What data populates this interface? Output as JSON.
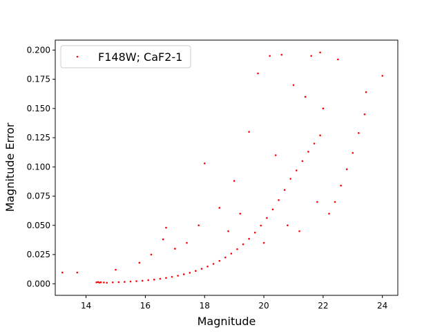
{
  "chart_data": {
    "type": "scatter",
    "xlabel": "Magnitude",
    "ylabel": "Magnitude Error",
    "xlim": [
      12.96,
      24.52
    ],
    "ylim": [
      -0.0099,
      0.2085
    ],
    "xticks": [
      14,
      16,
      18,
      20,
      22,
      24
    ],
    "xtick_labels": [
      "14",
      "16",
      "18",
      "20",
      "22",
      "24"
    ],
    "yticks": [
      0.0,
      0.025,
      0.05,
      0.075,
      0.1,
      0.125,
      0.15,
      0.175,
      0.2
    ],
    "ytick_labels": [
      "0.000",
      "0.025",
      "0.050",
      "0.075",
      "0.100",
      "0.125",
      "0.150",
      "0.175",
      "0.200"
    ],
    "grid": false,
    "legend": "upper-left",
    "series": [
      {
        "name": "F148W; CaF2-1",
        "color": "#ff0000",
        "marker": "dot",
        "points": [
          [
            13.2,
            0.0096
          ],
          [
            13.7,
            0.0096
          ],
          [
            14.35,
            0.0012
          ],
          [
            14.4,
            0.0015
          ],
          [
            14.45,
            0.001
          ],
          [
            14.5,
            0.0013
          ],
          [
            14.6,
            0.0011
          ],
          [
            14.7,
            0.0009
          ],
          [
            14.9,
            0.0012
          ],
          [
            15.1,
            0.0014
          ],
          [
            15.3,
            0.0016
          ],
          [
            15.5,
            0.0019
          ],
          [
            15.7,
            0.0022
          ],
          [
            15.9,
            0.0026
          ],
          [
            16.1,
            0.0031
          ],
          [
            16.3,
            0.0036
          ],
          [
            16.5,
            0.0043
          ],
          [
            16.7,
            0.005
          ],
          [
            16.9,
            0.0059
          ],
          [
            17.1,
            0.0069
          ],
          [
            17.3,
            0.0081
          ],
          [
            17.5,
            0.0094
          ],
          [
            17.7,
            0.011
          ],
          [
            17.9,
            0.0128
          ],
          [
            18.1,
            0.0148
          ],
          [
            18.3,
            0.017
          ],
          [
            18.5,
            0.0196
          ],
          [
            18.7,
            0.0225
          ],
          [
            18.9,
            0.0258
          ],
          [
            19.1,
            0.0296
          ],
          [
            19.3,
            0.0338
          ],
          [
            19.5,
            0.0385
          ],
          [
            19.7,
            0.0438
          ],
          [
            19.9,
            0.0498
          ],
          [
            20.1,
            0.0563
          ],
          [
            20.3,
            0.0636
          ],
          [
            20.5,
            0.0716
          ],
          [
            20.7,
            0.0803
          ],
          [
            20.9,
            0.0898
          ],
          [
            21.1,
            0.097
          ],
          [
            21.3,
            0.105
          ],
          [
            21.5,
            0.113
          ],
          [
            21.7,
            0.12
          ],
          [
            21.9,
            0.127
          ],
          [
            22.2,
            0.06
          ],
          [
            22.4,
            0.07
          ],
          [
            22.6,
            0.084
          ],
          [
            22.8,
            0.098
          ],
          [
            23.0,
            0.112
          ],
          [
            23.2,
            0.129
          ],
          [
            23.4,
            0.145
          ],
          [
            23.45,
            0.164
          ],
          [
            24.0,
            0.178
          ],
          [
            16.7,
            0.048
          ],
          [
            17.8,
            0.05
          ],
          [
            18.0,
            0.103
          ],
          [
            18.5,
            0.065
          ],
          [
            19.0,
            0.088
          ],
          [
            19.5,
            0.13
          ],
          [
            19.8,
            0.18
          ],
          [
            20.2,
            0.195
          ],
          [
            20.6,
            0.196
          ],
          [
            21.0,
            0.17
          ],
          [
            21.6,
            0.195
          ],
          [
            21.9,
            0.198
          ],
          [
            22.5,
            0.192
          ],
          [
            15.0,
            0.012
          ],
          [
            15.8,
            0.018
          ],
          [
            16.2,
            0.025
          ],
          [
            16.6,
            0.038
          ],
          [
            17.0,
            0.03
          ],
          [
            17.4,
            0.035
          ],
          [
            18.8,
            0.045
          ],
          [
            19.2,
            0.06
          ],
          [
            20.0,
            0.035
          ],
          [
            20.8,
            0.05
          ],
          [
            21.2,
            0.045
          ],
          [
            21.8,
            0.07
          ],
          [
            22.0,
            0.15
          ],
          [
            21.4,
            0.16
          ],
          [
            20.4,
            0.11
          ]
        ]
      }
    ]
  }
}
